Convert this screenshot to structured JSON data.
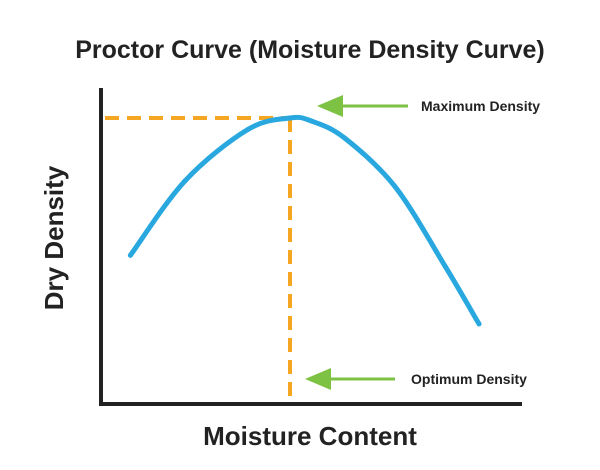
{
  "chart_data": {
    "type": "line",
    "title": "Proctor Curve (Moisture Density Curve)",
    "xlabel": "Moisture Content",
    "ylabel": "Dry Density",
    "xlim": [
      0,
      1
    ],
    "ylim": [
      0,
      1
    ],
    "grid": false,
    "legend": "none",
    "series": [
      {
        "x": [
          0.07,
          0.2,
          0.35,
          0.45,
          0.5,
          0.58,
          0.7,
          0.82,
          0.9
        ],
        "y": [
          0.52,
          0.78,
          0.96,
          1.0,
          0.99,
          0.93,
          0.76,
          0.48,
          0.28
        ]
      }
    ],
    "peak": {
      "x": 0.45,
      "y": 1.0
    },
    "annotations": [
      {
        "label": "Maximum Density",
        "target": "peak-y"
      },
      {
        "label": "Optimum Density",
        "target": "peak-x"
      }
    ],
    "colors": {
      "curve": "#29a8e0",
      "guide": "#f5a623",
      "arrow": "#7dc242",
      "axis": "#222222",
      "text": "#222222"
    }
  }
}
